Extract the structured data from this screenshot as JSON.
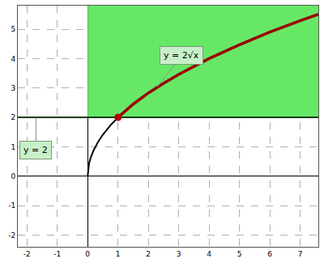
{
  "chart_data": {
    "type": "line",
    "xlim": [
      -2.3,
      7.6
    ],
    "ylim": [
      -2.4,
      5.8
    ],
    "xticks": [
      -2,
      -1,
      0,
      1,
      2,
      3,
      4,
      5,
      6,
      7
    ],
    "yticks": [
      -2,
      -1,
      0,
      1,
      2,
      3,
      4,
      5
    ],
    "grid": true,
    "series": [
      {
        "type": "area",
        "color": "#66e866",
        "x": [
          0,
          7.6,
          7.6,
          0
        ],
        "values": [
          2,
          2,
          5.8,
          5.8
        ]
      },
      {
        "type": "line",
        "color": "#0b3d0b",
        "line_style": "solid",
        "x": [
          -2.3,
          7.6
        ],
        "values": [
          2,
          2
        ]
      },
      {
        "type": "line",
        "color": "#000000",
        "line_style": "solid",
        "x": [
          0,
          0.02,
          0.05,
          0.1,
          0.2,
          0.35,
          0.5,
          0.75,
          1
        ],
        "values": [
          0,
          0.28,
          0.45,
          0.63,
          0.89,
          1.18,
          1.41,
          1.73,
          2
        ]
      },
      {
        "type": "line",
        "color": "#990000",
        "line_style": "solid",
        "x": [
          1,
          1.5,
          2,
          2.5,
          3,
          4,
          5,
          6,
          7,
          7.6
        ],
        "values": [
          2,
          2.45,
          2.83,
          3.16,
          3.46,
          4,
          4.47,
          4.9,
          5.29,
          5.51
        ]
      },
      {
        "type": "scatter",
        "color": "#aa0000",
        "marker": "circle",
        "x": [
          1
        ],
        "values": [
          2
        ]
      }
    ],
    "annotations": [
      {
        "text": "y = 2√x",
        "x": 2.3,
        "y": 3.05
      },
      {
        "text": "y = 2",
        "x": -1.7,
        "y": 2
      }
    ]
  }
}
